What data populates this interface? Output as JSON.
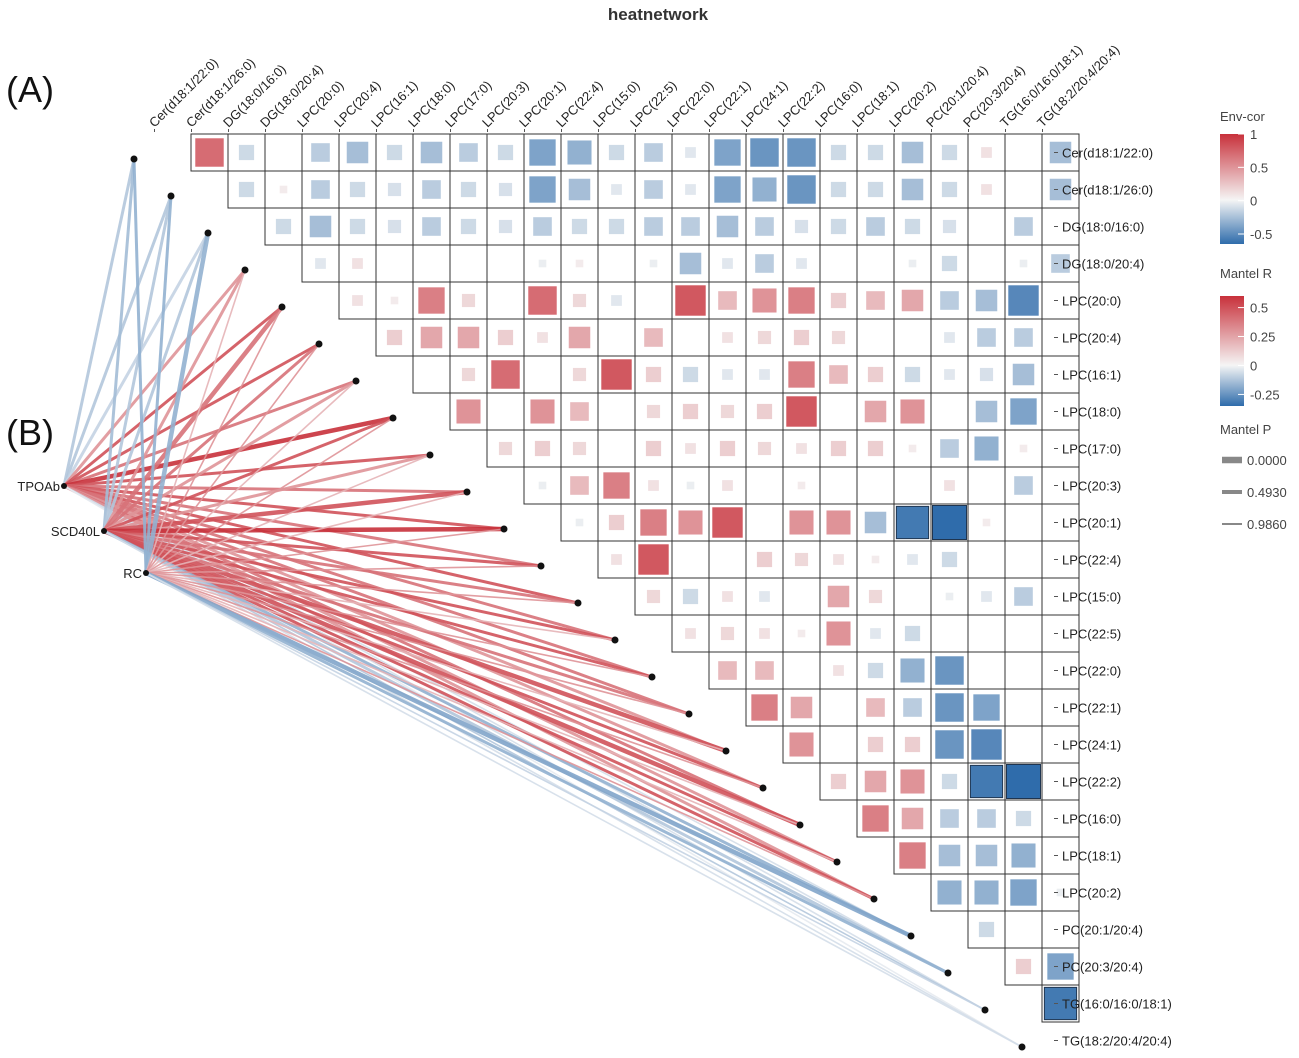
{
  "chart_data": {
    "type": "heatmap",
    "title": "heatnetwork",
    "panel_labels": [
      "(A)",
      "(B)"
    ],
    "variables": [
      "Cer(d18:1/22:0)",
      "Cer(d18:1/26:0)",
      "DG(18:0/16:0)",
      "DG(18:0/20:4)",
      "LPC(20:0)",
      "LPC(20:4)",
      "LPC(16:1)",
      "LPC(18:0)",
      "LPC(17:0)",
      "LPC(20:3)",
      "LPC(20:1)",
      "LPC(22:4)",
      "LPC(15:0)",
      "LPC(22:5)",
      "LPC(22:0)",
      "LPC(22:1)",
      "LPC(24:1)",
      "LPC(22:2)",
      "LPC(16:0)",
      "LPC(18:1)",
      "LPC(20:2)",
      "PC(20:1/20:4)",
      "PC(20:3/20:4)",
      "TG(16:0/16:0/18:1)",
      "TG(18:2/20:4/20:4)"
    ],
    "correlation_matrix": [
      [
        0.7,
        -0.2,
        0,
        -0.3,
        -0.4,
        -0.2,
        -0.4,
        -0.3,
        -0.2,
        -0.6,
        -0.5,
        -0.2,
        -0.3,
        -0.1,
        -0.6,
        -0.7,
        -0.7,
        -0.2,
        -0.2,
        -0.4,
        -0.2,
        0.1,
        0,
        -0.4
      ],
      [
        -0.2,
        0.05,
        -0.3,
        -0.2,
        -0.15,
        -0.3,
        -0.2,
        -0.15,
        -0.6,
        -0.4,
        -0.1,
        -0.3,
        -0.1,
        -0.6,
        -0.5,
        -0.7,
        -0.2,
        -0.2,
        -0.4,
        -0.2,
        0.1,
        0,
        -0.4
      ],
      [
        -0.2,
        -0.4,
        -0.2,
        -0.15,
        -0.3,
        -0.2,
        -0.15,
        -0.3,
        -0.2,
        -0.2,
        -0.3,
        -0.3,
        -0.4,
        -0.3,
        -0.15,
        -0.2,
        -0.3,
        -0.2,
        -0.15,
        0,
        -0.3
      ],
      [
        -0.1,
        0.1,
        0,
        0,
        0,
        0,
        -0.05,
        0.05,
        0,
        -0.05,
        -0.4,
        -0.1,
        -0.3,
        -0.1,
        0,
        0,
        -0.05,
        -0.2,
        0,
        -0.05,
        -0.3
      ],
      [
        0.1,
        0.05,
        0.6,
        0.15,
        0,
        0.7,
        0.15,
        -0.1,
        0,
        0.8,
        0.3,
        0.5,
        0.6,
        0.2,
        0.3,
        0.4,
        -0.3,
        -0.4,
        -0.8,
        0
      ],
      [
        0.2,
        0.4,
        0.4,
        0.2,
        0.1,
        0.4,
        0,
        0.3,
        0,
        0.1,
        0.15,
        0.2,
        0.15,
        0,
        0,
        -0.1,
        -0.3,
        -0.3,
        0
      ],
      [
        0,
        0.15,
        0.7,
        0,
        0.15,
        0.8,
        0.2,
        -0.2,
        -0.1,
        -0.1,
        0.6,
        0.3,
        0.2,
        -0.2,
        -0.1,
        -0.15,
        -0.4
      ],
      [
        0.5,
        0,
        0.5,
        0.3,
        0,
        0.15,
        0.2,
        0.15,
        0.2,
        0.8,
        0,
        0.4,
        0.5,
        0,
        -0.4,
        -0.6
      ],
      [
        0.15,
        0.2,
        0.15,
        0,
        0.2,
        0.1,
        0.2,
        0.15,
        0.1,
        0.2,
        0.2,
        0.05,
        -0.3,
        -0.5,
        0.05
      ],
      [
        -0.05,
        0.3,
        0.6,
        0.1,
        -0.05,
        0.1,
        0,
        0.05,
        0,
        0,
        0,
        0.1,
        0,
        -0.3
      ],
      [
        -0.05,
        0.2,
        0.6,
        0.5,
        0.8,
        0,
        0.5,
        0.5,
        -0.4,
        -0.9,
        -1,
        0.05
      ],
      [
        0.1,
        0.8,
        0,
        0,
        0.2,
        0.15,
        0.1,
        0.05,
        -0.1,
        -0.2,
        0
      ],
      [
        0.15,
        -0.2,
        0.1,
        -0.1,
        0,
        0.4,
        0.15,
        0,
        -0.05,
        -0.1,
        -0.3
      ],
      [
        0.1,
        0.15,
        0.1,
        0.05,
        0.5,
        -0.1,
        -0.2,
        0
      ],
      [
        0.3,
        0.3,
        0,
        0.1,
        -0.2,
        -0.5,
        -0.7,
        0
      ],
      [
        0.6,
        0.4,
        0,
        0.3,
        -0.3,
        -0.7,
        -0.6,
        0
      ],
      [
        0.5,
        0,
        0.2,
        0.2,
        -0.7,
        -0.8,
        0
      ],
      [
        0.2,
        0.4,
        0.5,
        -0.2,
        -0.9,
        -1,
        0
      ],
      [
        0.6,
        0.4,
        -0.3,
        -0.3,
        -0.2,
        0
      ],
      [
        0.6,
        -0.4,
        -0.4,
        -0.5,
        0
      ],
      [
        -0.5,
        -0.5,
        -0.6,
        -0.05
      ],
      [
        -0.2
      ],
      [
        0.2,
        -0.6
      ],
      [
        -0.9
      ]
    ],
    "mantel_nodes": [
      "TPOAb",
      "SCD40L",
      "RC"
    ],
    "mantel_r": [
      [
        -0.2,
        -0.2,
        -0.15,
        0.3,
        0.5,
        0.5,
        0.4,
        0.6,
        0.5,
        0.4,
        0.5,
        0.4,
        0.5,
        0.4,
        0.4,
        0.4,
        0.3,
        0.3,
        0.4,
        0.3,
        0.3,
        -0.1,
        -0.1,
        -0.1,
        -0.05
      ],
      [
        -0.25,
        -0.2,
        -0.2,
        0.3,
        0.4,
        0.4,
        0.3,
        0.5,
        0.3,
        0.5,
        0.6,
        0.5,
        0.4,
        0.5,
        0.5,
        0.4,
        0.5,
        0.5,
        0.5,
        0.5,
        0.5,
        -0.3,
        -0.2,
        -0.2,
        -0.1
      ],
      [
        -0.3,
        -0.3,
        -0.3,
        0.2,
        0.3,
        0.3,
        0.2,
        0.3,
        0.2,
        0.2,
        0.3,
        0.3,
        0.3,
        0.2,
        0.3,
        0.3,
        0.2,
        0.3,
        0.2,
        0.2,
        0.3,
        -0.35,
        -0.3,
        -0.15,
        -0.1
      ]
    ],
    "mantel_p": [
      [
        0.49,
        0.49,
        0.49,
        0.49,
        0.49,
        0.49,
        0.49,
        0.0,
        0.49,
        0.49,
        0.49,
        0.49,
        0.49,
        0.49,
        0.49,
        0.49,
        0.49,
        0.49,
        0.49,
        0.49,
        0.49,
        0.986,
        0.986,
        0.986,
        0.986
      ],
      [
        0.49,
        0.49,
        0.49,
        0.49,
        0.0,
        0.49,
        0.49,
        0.49,
        0.49,
        0.0,
        0.0,
        0.49,
        0.49,
        0.49,
        0.49,
        0.49,
        0.0,
        0.49,
        0.0,
        0.49,
        0.49,
        0.49,
        0.49,
        0.986,
        0.986
      ],
      [
        0.49,
        0.49,
        0.0,
        0.986,
        0.986,
        0.986,
        0.986,
        0.986,
        0.986,
        0.986,
        0.986,
        0.986,
        0.986,
        0.986,
        0.986,
        0.986,
        0.986,
        0.986,
        0.986,
        0.986,
        0.986,
        0.0,
        0.49,
        0.986,
        0.986
      ]
    ],
    "legend": {
      "env_cor": {
        "title": "Env-cor",
        "ticks": [
          "1",
          "0.5",
          "0",
          "-0.5"
        ],
        "range": [
          -0.65,
          1
        ]
      },
      "mantel_r": {
        "title": "Mantel R",
        "ticks": [
          "0.5",
          "0.25",
          "0",
          "-0.25"
        ],
        "range": [
          -0.35,
          0.6
        ]
      },
      "mantel_p": {
        "title": "Mantel P",
        "ticks": [
          "0.0000",
          "0.4930",
          "0.9860"
        ]
      }
    },
    "colors": {
      "positive": "#C8313B",
      "negative": "#2F6CAB",
      "neutral": "#F5F5F5"
    }
  }
}
